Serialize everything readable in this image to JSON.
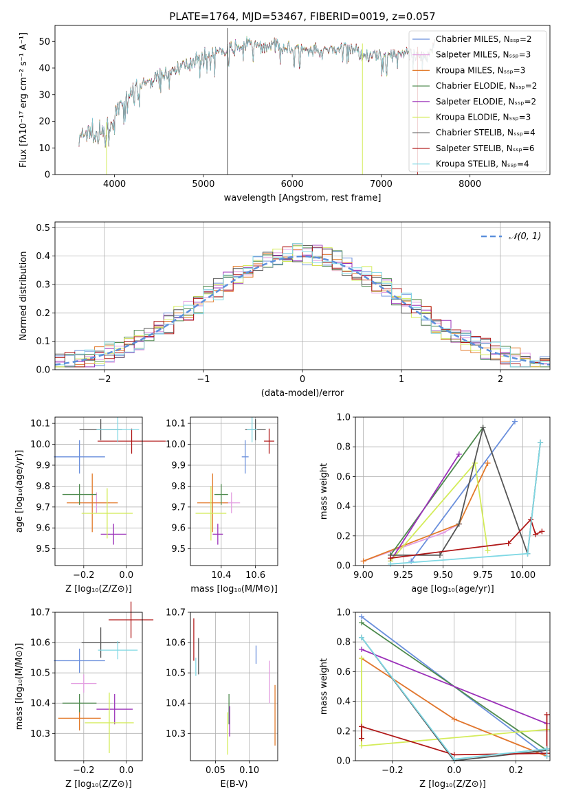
{
  "colors": {
    "chabrier_miles": "#6a8fdc",
    "salpeter_miles": "#e39ee1",
    "kroupa_miles": "#e27a2a",
    "chabrier_elodie": "#4e8a4e",
    "salpeter_elodie": "#9b30b9",
    "kroupa_elodie": "#d4ec5a",
    "chabrier_stelib": "#555555",
    "salpeter_stelib": "#b01818",
    "kroupa_stelib": "#7fd8e4",
    "normal_curve": "#5b8fdc"
  },
  "chart_data": [
    {
      "id": "spectrum",
      "type": "line",
      "title": "PLATE=1764, MJD=53467, FIBERID=0019, z=0.057",
      "xlabel": "wavelength [Angstrom, rest frame]",
      "ylabel": "Flux [fλ10⁻¹⁷ erg cm⁻² s⁻¹ A⁻¹]",
      "xlim": [
        3330,
        8900
      ],
      "ylim": [
        0,
        56
      ],
      "xticks": [
        "4000",
        "5000",
        "6000",
        "7000",
        "8000"
      ],
      "yticks": [
        "0",
        "10",
        "20",
        "30",
        "40",
        "50"
      ],
      "legend_position": "upper-right",
      "legend": [
        "Chabrier MILES, Nₛₛₚ=2",
        "Salpeter MILES, Nₛₛₚ=3",
        "Kroupa MILES, Nₛₛₚ=3",
        "Chabrier ELODIE, Nₛₛₚ=2",
        "Salpeter ELODIE, Nₛₛₚ=2",
        "Kroupa ELODIE, Nₛₛₚ=3",
        "Chabrier STELIB, Nₛₛₚ=4",
        "Salpeter STELIB, Nₛₛₚ=6",
        "Kroupa STELIB, Nₛₛₚ=4"
      ],
      "continuum": [
        [
          3600,
          13
        ],
        [
          3700,
          16
        ],
        [
          3800,
          14
        ],
        [
          3900,
          15
        ],
        [
          4000,
          21
        ],
        [
          4100,
          27
        ],
        [
          4200,
          30
        ],
        [
          4300,
          33
        ],
        [
          4400,
          35
        ],
        [
          4500,
          37
        ],
        [
          4600,
          38
        ],
        [
          4700,
          40
        ],
        [
          4800,
          41
        ],
        [
          4900,
          43
        ],
        [
          5000,
          44
        ],
        [
          5100,
          45
        ],
        [
          5200,
          46
        ],
        [
          5300,
          47
        ],
        [
          5400,
          48
        ],
        [
          5500,
          49
        ],
        [
          5600,
          48
        ],
        [
          5700,
          48
        ],
        [
          5800,
          49
        ],
        [
          5900,
          48
        ],
        [
          6000,
          47
        ],
        [
          6100,
          47
        ],
        [
          6200,
          46
        ],
        [
          6300,
          46
        ],
        [
          6400,
          47
        ],
        [
          6500,
          47
        ],
        [
          6600,
          48
        ],
        [
          6700,
          47
        ],
        [
          6800,
          45
        ],
        [
          6900,
          45
        ],
        [
          7000,
          44
        ],
        [
          7100,
          45
        ],
        [
          7200,
          46
        ],
        [
          7300,
          45
        ],
        [
          7400,
          44
        ],
        [
          7500,
          44
        ],
        [
          7600,
          49
        ]
      ],
      "spikes": [
        [
          3910,
          0
        ],
        [
          5270,
          55
        ],
        [
          6790,
          0
        ],
        [
          7410,
          0
        ]
      ]
    },
    {
      "id": "residuals",
      "type": "bar",
      "xlabel": "(data-model)/error",
      "ylabel": "Normed distribution",
      "xlim": [
        -2.5,
        2.5
      ],
      "ylim": [
        0,
        0.52
      ],
      "xticks": [
        "−2",
        "−1",
        "0",
        "1",
        "2"
      ],
      "yticks": [
        "0.0",
        "0.1",
        "0.2",
        "0.3",
        "0.4",
        "0.5"
      ],
      "legend_position": "upper-right",
      "legend": [
        "𝒩(0, 1)"
      ],
      "bins": 50
    },
    {
      "id": "age_vs_z",
      "type": "scatter",
      "xlabel": "Z [log₁₀(Z/Z⊙)]",
      "ylabel": "age  [log₁₀(age/yr)]",
      "xlim": [
        -0.335,
        0.075
      ],
      "ylim": [
        9.42,
        10.13
      ],
      "xticks": [
        "−0.2",
        "0.0"
      ],
      "yticks": [
        "9.5",
        "9.6",
        "9.7",
        "9.8",
        "9.9",
        "10.0",
        "10.1"
      ],
      "points": [
        {
          "x": -0.22,
          "y": 9.94,
          "xerr": 0.12,
          "yerr": 0.08,
          "c": "chabrier_miles"
        },
        {
          "x": -0.14,
          "y": 9.72,
          "xerr": 0.06,
          "yerr": 0.05,
          "c": "salpeter_miles"
        },
        {
          "x": -0.16,
          "y": 9.72,
          "xerr": 0.12,
          "yerr": 0.14,
          "c": "kroupa_miles"
        },
        {
          "x": -0.22,
          "y": 9.76,
          "xerr": 0.08,
          "yerr": 0.05,
          "c": "chabrier_elodie"
        },
        {
          "x": -0.06,
          "y": 9.57,
          "xerr": 0.06,
          "yerr": 0.05,
          "c": "salpeter_elodie"
        },
        {
          "x": -0.09,
          "y": 9.67,
          "xerr": 0.12,
          "yerr": 0.12,
          "c": "kroupa_elodie"
        },
        {
          "x": -0.12,
          "y": 10.07,
          "xerr": 0.1,
          "yerr": 0.05,
          "c": "chabrier_stelib"
        },
        {
          "x": 0.025,
          "y": 10.015,
          "xerr": 0.16,
          "yerr": 0.06,
          "c": "salpeter_stelib"
        },
        {
          "x": -0.04,
          "y": 10.07,
          "xerr": 0.1,
          "yerr": 0.06,
          "c": "kroupa_stelib"
        }
      ]
    },
    {
      "id": "age_vs_mass",
      "type": "scatter",
      "xlabel": "mass [log₁₀(M/M⊙)]",
      "ylabel": "",
      "xlim": [
        10.22,
        10.73
      ],
      "ylim": [
        9.42,
        10.13
      ],
      "xticks": [
        "10.4",
        "10.6"
      ],
      "yticks": [
        "9.5",
        "9.6",
        "9.7",
        "9.8",
        "9.9",
        "10.0",
        "10.1"
      ],
      "points": [
        {
          "x": 10.54,
          "y": 9.94,
          "xerr": 0.02,
          "yerr": 0.08,
          "c": "chabrier_miles"
        },
        {
          "x": 10.46,
          "y": 9.72,
          "xerr": 0.05,
          "yerr": 0.05,
          "c": "salpeter_miles"
        },
        {
          "x": 10.35,
          "y": 9.72,
          "xerr": 0.09,
          "yerr": 0.14,
          "c": "kroupa_miles"
        },
        {
          "x": 10.4,
          "y": 9.76,
          "xerr": 0.04,
          "yerr": 0.05,
          "c": "chabrier_elodie"
        },
        {
          "x": 10.38,
          "y": 9.57,
          "xerr": 0.03,
          "yerr": 0.05,
          "c": "salpeter_elodie"
        },
        {
          "x": 10.34,
          "y": 9.67,
          "xerr": 0.09,
          "yerr": 0.13,
          "c": "kroupa_elodie"
        },
        {
          "x": 10.6,
          "y": 10.07,
          "xerr": 0.06,
          "yerr": 0.05,
          "c": "chabrier_stelib"
        },
        {
          "x": 10.68,
          "y": 10.015,
          "xerr": 0.03,
          "yerr": 0.06,
          "c": "salpeter_stelib"
        },
        {
          "x": 10.58,
          "y": 10.07,
          "xerr": 0.03,
          "yerr": 0.06,
          "c": "kroupa_stelib"
        }
      ]
    },
    {
      "id": "mass_weight_vs_age",
      "type": "line",
      "xlabel": "age  [log₁₀(age/yr)]",
      "ylabel": "mass weight",
      "xlim": [
        8.95,
        10.17
      ],
      "ylim": [
        0,
        1
      ],
      "xticks": [
        "9.00",
        "9.25",
        "9.50",
        "9.75",
        "10.00"
      ],
      "yticks": [
        "0.0",
        "0.2",
        "0.4",
        "0.6",
        "0.8",
        "1.0"
      ],
      "series": [
        {
          "c": "chabrier_miles",
          "x": [
            9.3,
            9.95
          ],
          "y": [
            0.03,
            0.97
          ]
        },
        {
          "c": "salpeter_miles",
          "x": [
            9.6,
            9.5,
            9.0
          ],
          "y": [
            0.28,
            0.22,
            0.03
          ]
        },
        {
          "c": "kroupa_miles",
          "x": [
            9.78,
            9.6,
            9.0
          ],
          "y": [
            0.69,
            0.28,
            0.03
          ]
        },
        {
          "c": "chabrier_elodie",
          "x": [
            9.17,
            9.75
          ],
          "y": [
            0.07,
            0.93
          ]
        },
        {
          "c": "salpeter_elodie",
          "x": [
            9.17,
            9.6
          ],
          "y": [
            0.03,
            0.75
          ]
        },
        {
          "c": "kroupa_elodie",
          "x": [
            9.17,
            9.7,
            9.78
          ],
          "y": [
            0.03,
            0.69,
            0.1
          ]
        },
        {
          "c": "chabrier_stelib",
          "x": [
            9.17,
            9.48,
            9.6,
            9.75,
            10.03,
            10.11
          ],
          "y": [
            0.07,
            0.07,
            0.28,
            0.93,
            0.08,
            0.83
          ]
        },
        {
          "c": "salpeter_stelib",
          "x": [
            9.17,
            9.91,
            10.05,
            10.08,
            10.12
          ],
          "y": [
            0.05,
            0.15,
            0.31,
            0.21,
            0.23
          ]
        },
        {
          "c": "kroupa_stelib",
          "x": [
            9.17,
            10.03,
            10.11
          ],
          "y": [
            0.01,
            0.08,
            0.83
          ]
        }
      ]
    },
    {
      "id": "mass_vs_z",
      "type": "scatter",
      "xlabel": "Z [log₁₀(Z/Z⊙)]",
      "ylabel": "mass [log₁₀(M/M⊙)]",
      "xlim": [
        -0.335,
        0.075
      ],
      "ylim": [
        10.21,
        10.7
      ],
      "xticks": [
        "−0.2",
        "0.0"
      ],
      "yticks": [
        "10.3",
        "10.4",
        "10.5",
        "10.6",
        "10.7"
      ],
      "points": [
        {
          "x": -0.22,
          "y": 10.54,
          "xerr": 0.12,
          "yerr": 0.04,
          "c": "chabrier_miles"
        },
        {
          "x": -0.2,
          "y": 10.465,
          "xerr": 0.06,
          "yerr": 0.03,
          "c": "salpeter_miles"
        },
        {
          "x": -0.22,
          "y": 10.35,
          "xerr": 0.1,
          "yerr": 0.04,
          "c": "kroupa_miles"
        },
        {
          "x": -0.22,
          "y": 10.4,
          "xerr": 0.08,
          "yerr": 0.03,
          "c": "chabrier_elodie"
        },
        {
          "x": -0.055,
          "y": 10.38,
          "xerr": 0.085,
          "yerr": 0.05,
          "c": "salpeter_elodie"
        },
        {
          "x": -0.08,
          "y": 10.335,
          "xerr": 0.115,
          "yerr": 0.1,
          "c": "kroupa_elodie"
        },
        {
          "x": -0.12,
          "y": 10.6,
          "xerr": 0.09,
          "yerr": 0.05,
          "c": "chabrier_stelib"
        },
        {
          "x": 0.022,
          "y": 10.675,
          "xerr": 0.105,
          "yerr": 0.06,
          "c": "salpeter_stelib"
        },
        {
          "x": -0.04,
          "y": 10.575,
          "xerr": 0.093,
          "yerr": 0.03,
          "c": "kroupa_stelib"
        }
      ]
    },
    {
      "id": "mass_vs_ebv",
      "type": "scatter",
      "xlabel": "E(B-V)",
      "ylabel": "",
      "xlim": [
        0.013,
        0.142
      ],
      "ylim": [
        10.21,
        10.7
      ],
      "xticks": [
        "0.05",
        "0.10"
      ],
      "yticks": [
        "10.3",
        "10.4",
        "10.5",
        "10.6",
        "10.7"
      ],
      "points": [
        {
          "x": 0.11,
          "y": 10.56,
          "xerr": 0,
          "yerr": 0.03,
          "c": "chabrier_miles"
        },
        {
          "x": 0.13,
          "y": 10.47,
          "xerr": 0,
          "yerr": 0.07,
          "c": "salpeter_miles"
        },
        {
          "x": 0.138,
          "y": 10.36,
          "xerr": 0,
          "yerr": 0.1,
          "c": "kroupa_miles"
        },
        {
          "x": 0.07,
          "y": 10.38,
          "xerr": 0,
          "yerr": 0.05,
          "c": "chabrier_elodie"
        },
        {
          "x": 0.071,
          "y": 10.34,
          "xerr": 0,
          "yerr": 0.05,
          "c": "salpeter_elodie"
        },
        {
          "x": 0.068,
          "y": 10.3,
          "xerr": 0,
          "yerr": 0.07,
          "c": "kroupa_elodie"
        },
        {
          "x": 0.025,
          "y": 10.555,
          "xerr": 0,
          "yerr": 0.06,
          "c": "chabrier_stelib"
        },
        {
          "x": 0.018,
          "y": 10.61,
          "xerr": 0,
          "yerr": 0.07,
          "c": "salpeter_stelib"
        },
        {
          "x": 0.021,
          "y": 10.52,
          "xerr": 0,
          "yerr": 0.03,
          "c": "kroupa_stelib"
        }
      ]
    },
    {
      "id": "mass_weight_vs_z",
      "type": "line",
      "xlabel": "Z [log₁₀(Z/Z⊙)]",
      "ylabel": "mass weight",
      "xlim": [
        -0.32,
        0.31
      ],
      "ylim": [
        0,
        1
      ],
      "xticks": [
        "−0.2",
        "0.0",
        "0.2"
      ],
      "yticks": [
        "0.0",
        "0.2",
        "0.4",
        "0.6",
        "0.8",
        "1.0"
      ],
      "series": [
        {
          "c": "chabrier_miles",
          "x": [
            -0.3,
            0.3
          ],
          "y": [
            0.97,
            0.03
          ]
        },
        {
          "c": "salpeter_miles",
          "x": [
            -0.3,
            0.0,
            0.3
          ],
          "y": [
            0.69,
            0.28,
            0.03
          ]
        },
        {
          "c": "kroupa_miles",
          "x": [
            -0.3,
            0.0,
            0.3
          ],
          "y": [
            0.69,
            0.28,
            0.03
          ]
        },
        {
          "c": "chabrier_elodie",
          "x": [
            -0.3,
            0.3
          ],
          "y": [
            0.93,
            0.07
          ]
        },
        {
          "c": "salpeter_elodie",
          "x": [
            -0.3,
            0.3
          ],
          "y": [
            0.75,
            0.25
          ]
        },
        {
          "c": "kroupa_elodie",
          "x": [
            -0.3,
            -0.3,
            0.3
          ],
          "y": [
            0.69,
            0.1,
            0.21
          ]
        },
        {
          "c": "chabrier_stelib",
          "x": [
            -0.3,
            0.0,
            0.3,
            0.3
          ],
          "y": [
            0.83,
            0.0,
            0.07,
            0.08
          ]
        },
        {
          "c": "salpeter_stelib",
          "x": [
            -0.3,
            -0.3,
            0.0,
            0.3,
            0.3
          ],
          "y": [
            0.15,
            0.23,
            0.04,
            0.05,
            0.31
          ]
        },
        {
          "c": "kroupa_stelib",
          "x": [
            -0.3,
            0.0,
            0.3,
            0.3
          ],
          "y": [
            0.83,
            0.01,
            0.08,
            0.03
          ]
        }
      ]
    }
  ]
}
